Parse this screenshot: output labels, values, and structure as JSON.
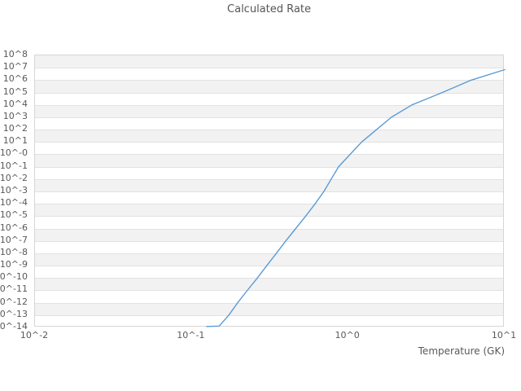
{
  "title": "Calculated Rate",
  "axes": {
    "x_label": "Temperature (GK)",
    "x_tick_labels": [
      "10^-2",
      "10^-1",
      "10^0",
      "10^1"
    ],
    "x_tick_exponents": [
      -2,
      -1,
      0,
      1
    ],
    "y_tick_labels": [
      "10^8",
      "10^7",
      "10^6",
      "10^5",
      "10^4",
      "10^3",
      "10^2",
      "10^1",
      "10^-0",
      "10^-1",
      "10^-2",
      "10^-3",
      "10^-4",
      "10^-5",
      "10^-6",
      "10^-7",
      "10^-8",
      "10^-9",
      "10^-10",
      "10^-11",
      "10^-12",
      "10^-13",
      "10^-14"
    ],
    "y_tick_exponents": [
      8,
      7,
      6,
      5,
      4,
      3,
      2,
      1,
      0,
      -1,
      -2,
      -3,
      -4,
      -5,
      -6,
      -7,
      -8,
      -9,
      -10,
      -11,
      -12,
      -13,
      -14
    ]
  },
  "colors": {
    "curve": "#5b9bd5",
    "band_gray": "#f2f2f2",
    "gridline": "#e2e2e2",
    "spine": "#d6d6d6",
    "text": "#595959"
  },
  "chart_data": {
    "type": "line",
    "title": "Calculated Rate",
    "xlabel": "Temperature (GK)",
    "ylabel": "",
    "x_scale": "log",
    "y_scale": "log",
    "xlim": [
      0.01,
      10
    ],
    "ylim": [
      1e-14,
      100000000.0
    ],
    "x_ticks": [
      0.01,
      0.1,
      1,
      10
    ],
    "grid": "horizontal-decade-bands-alternating",
    "legend": null,
    "series": [
      {
        "name": "Calculated Rate",
        "points": [
          [
            0.125,
            1.2e-14
          ],
          [
            0.15,
            1.3e-14
          ],
          [
            0.173,
            1e-13
          ],
          [
            0.197,
            1e-12
          ],
          [
            0.227,
            1e-11
          ],
          [
            0.263,
            1e-10
          ],
          [
            0.302,
            1e-09
          ],
          [
            0.348,
            1e-08
          ],
          [
            0.4,
            1e-07
          ],
          [
            0.463,
            1e-06
          ],
          [
            0.535,
            1e-05
          ],
          [
            0.615,
            0.0001
          ],
          [
            0.7,
            0.001
          ],
          [
            0.78,
            0.01
          ],
          [
            0.87,
            0.1
          ],
          [
            1.03,
            1.0
          ],
          [
            1.22,
            10
          ],
          [
            1.52,
            100
          ],
          [
            1.89,
            1000
          ],
          [
            2.56,
            10000
          ],
          [
            4.0,
            100000
          ],
          [
            6.1,
            1000000
          ],
          [
            10.0,
            7000000
          ]
        ]
      }
    ]
  }
}
